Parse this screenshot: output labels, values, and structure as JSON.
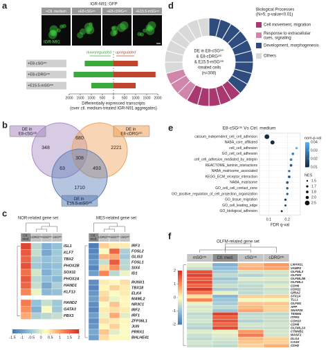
{
  "chart_data": [
    {
      "type": "bar",
      "panel": "a",
      "image_title": "IGR-N91::GFP",
      "image_label": "IGR-N91",
      "image_headers": [
        "+Ctl. medium",
        "+E8-cSGᶜᵐ",
        "+E8-cDRGᶜᵐ",
        "+E15.5-mSGᶜᵐ"
      ],
      "categories": [
        "+E8-cSGᶜᵐ",
        "+E8-cDRGᶜᵐ",
        "+E15.5-mSGᶜᵐ"
      ],
      "series": [
        {
          "name": "downregulated",
          "color": "#3aaa3a",
          "values": [
            -1300,
            -1800,
            -1000
          ]
        },
        {
          "name": "upregulated",
          "color": "#c1442c",
          "values": [
            1100,
            1900,
            1000
          ]
        }
      ],
      "xlim": [
        -2000,
        2000
      ],
      "xticks": [
        {
          "value": -2000,
          "label": "2000"
        },
        {
          "value": -1500,
          "label": "1500"
        },
        {
          "value": -1000,
          "label": "1000"
        },
        {
          "value": -500,
          "label": "500"
        },
        0,
        500,
        1000,
        1500,
        2000
      ],
      "xlabel": [
        "Differentially expressed transcripts",
        "(over ctl. medium-treated IGR-N91 aggregates)"
      ]
    },
    {
      "type": "venn",
      "panel": "b",
      "sets": [
        {
          "name": "DE in E8-cSGᶜᵐ",
          "color": "#a98bc4"
        },
        {
          "name": "DE in E8-cDRGᶜᵐ",
          "color": "#f0a35a"
        },
        {
          "name": "DE in E15.5-mSGᶜᵐ",
          "color": "#5b7fb8"
        }
      ],
      "regions": [
        {
          "sets": [
            0
          ],
          "value": 348
        },
        {
          "sets": [
            1
          ],
          "value": 2221
        },
        {
          "sets": [
            2
          ],
          "value": 1710
        },
        {
          "sets": [
            0,
            1
          ],
          "value": 680
        },
        {
          "sets": [
            0,
            2
          ],
          "value": 63
        },
        {
          "sets": [
            1,
            2
          ],
          "value": 493
        },
        {
          "sets": [
            0,
            1,
            2
          ],
          "value": 308
        }
      ]
    },
    {
      "type": "heatmap",
      "panel": "c",
      "title": "NOR-related gene set",
      "columns": [
        "Ctl. med.",
        "cDRGᶜᵐ",
        "mSGᶜᵐ",
        "cSGᶜᵐ"
      ],
      "rows": [
        "ISL1",
        "KLF7",
        "TBX2",
        "PHOX2B",
        "SOX11",
        "PHOX2A",
        "HAND1",
        "KLF13",
        "HAND2",
        "GATA3",
        "PBX3"
      ],
      "values": [
        [
          1.8,
          -0.3,
          -0.8,
          -0.6
        ],
        [
          1.6,
          -0.2,
          -0.9,
          -0.5
        ],
        [
          1.5,
          -0.4,
          -0.6,
          -0.5
        ],
        [
          1.7,
          -0.5,
          -0.7,
          -0.6
        ],
        [
          1.4,
          -0.1,
          -0.8,
          -0.5
        ],
        [
          1.6,
          -0.3,
          -0.6,
          -0.7
        ],
        [
          1.5,
          -0.2,
          -0.9,
          -0.4
        ],
        [
          1.2,
          0.1,
          -0.7,
          -0.6
        ],
        [
          1.3,
          -0.6,
          -0.2,
          -0.5
        ],
        [
          1.1,
          -0.8,
          0.2,
          -0.5
        ],
        [
          0.9,
          -0.4,
          -0.3,
          -0.2
        ]
      ],
      "colors": [
        "#4575b4",
        "#91bfdb",
        "#ffffbf",
        "#fc8d59",
        "#d73027"
      ],
      "colorbar_ticks": [
        -1.5,
        -1,
        -0.5,
        0,
        0.5,
        1,
        1.5,
        2
      ]
    },
    {
      "type": "heatmap",
      "title": "MES-related gene set",
      "columns": [
        "Ctl. med.",
        "cDRGᶜᵐ",
        "mSGᶜᵐ",
        "cSGᶜᵐ"
      ],
      "rows": [
        "IRF3",
        "FOSL2",
        "GLIS3",
        "FOSL1",
        "SIX4",
        "ID1",
        "RUNX1",
        "TBX18",
        "ELK4",
        "MAML2",
        "NR3C1",
        "IRF2",
        "IRF1",
        "ZFP36L1",
        "JUN",
        "PRRX1",
        "BHLHE41"
      ],
      "values": [
        [
          -1.4,
          0.6,
          0.4,
          0.4
        ],
        [
          -1.3,
          0.2,
          1.5,
          -0.4
        ],
        [
          -1.2,
          0.8,
          0.9,
          -0.5
        ],
        [
          -1.1,
          -0.2,
          1.6,
          -0.3
        ],
        [
          -1.3,
          0.5,
          1.1,
          -0.3
        ],
        [
          -1.0,
          1.2,
          -0.3,
          0.1
        ],
        [
          -1.2,
          0.4,
          0.3,
          0.5
        ],
        [
          -1.3,
          0.3,
          0.6,
          0.4
        ],
        [
          -1.1,
          0.5,
          0.2,
          0.4
        ],
        [
          -1.0,
          0.6,
          0.1,
          0.3
        ],
        [
          -1.2,
          0.2,
          0.7,
          0.3
        ],
        [
          -1.3,
          0.4,
          0.5,
          0.4
        ],
        [
          -1.0,
          0.1,
          0.9,
          0.0
        ],
        [
          -1.2,
          0.5,
          0.4,
          0.3
        ],
        [
          -1.1,
          0.3,
          0.6,
          0.2
        ],
        [
          -0.9,
          0.7,
          0.0,
          0.2
        ],
        [
          -1.0,
          0.5,
          0.3,
          0.2
        ]
      ],
      "colors": [
        "#4575b4",
        "#91bfdb",
        "#ffffbf",
        "#fc8d59",
        "#d73027"
      ],
      "colorbar_ticks": [
        -1.5,
        -1,
        -0.5,
        0,
        0.5,
        1,
        1.5,
        2
      ]
    },
    {
      "type": "pie",
      "panel": "d",
      "donut": true,
      "legend_title": [
        "Biological Processes",
        "(N>5, p-value<0.01)"
      ],
      "center_text": [
        "DE in E8-cSGᶜᵐ",
        "& E8-cDRGᶜᵐ",
        "& E15.5-mSGᶜᵐ",
        "-treated cells",
        "(n=308)"
      ],
      "series": [
        {
          "name": "Cell movement, migration",
          "color": "#a8386f",
          "values": [
            1,
            1,
            1,
            1,
            1
          ]
        },
        {
          "name": "Response to extracellular cues, signaling",
          "color": "#cf86aa",
          "values": [
            1,
            1,
            1
          ]
        },
        {
          "name": "Development, morphogenesis",
          "color": "#2f4c7e",
          "values": [
            1,
            1,
            1,
            1,
            1,
            1,
            1,
            1,
            1
          ]
        },
        {
          "name": "Others",
          "color": "#d9d9d9",
          "values": [
            1,
            1,
            1,
            1,
            1,
            1,
            1
          ]
        }
      ]
    },
    {
      "type": "scatter",
      "panel": "e",
      "title": "E8-cSGᶜᵐ Vs Ctrl. medium",
      "xlabel": "FDR q-val",
      "categories": [
        "calcium_independent_cell_cell_adhesion",
        "NABA_core_affiliated",
        "cell_cell_adhesion",
        "GO_cell_cell_adhesion",
        "cell_cell_adhesion_mediated_by_integrin",
        "REACTOME_laminin_interactions",
        "NABA_matrisome_associated",
        "KEGG_ECM_receptor_interaction",
        "NABA_matrisome",
        "GO_cell_cell_contact_zone",
        "GO_positive_regulation_of_cell_projection_organization",
        "GO_tissue_migration",
        "GO_cell_leading_edge",
        "GO_biological_adhesion"
      ],
      "values": [
        0.09,
        0.12,
        0.25,
        0.23,
        0.22,
        0.22,
        0.21,
        0.21,
        0.2,
        0.2,
        0.2,
        0.19,
        0.19,
        0.17
      ],
      "nom_p_val": [
        0.005,
        0.005,
        0.04,
        0.03,
        0.03,
        0.02,
        0.025,
        0.02,
        0.02,
        0.02,
        0.02,
        0.015,
        0.015,
        0.01
      ],
      "nes": [
        2.5,
        2.3,
        1.7,
        1.8,
        1.8,
        1.8,
        1.7,
        1.8,
        1.8,
        1.7,
        1.7,
        1.7,
        1.6,
        1.6
      ],
      "xlim": [
        0.05,
        0.27
      ],
      "xticks": [
        0.1,
        0.2
      ],
      "grid": true,
      "color_legend_title": "nom-p-val",
      "color_ticks": [
        0.04,
        0.03,
        0.02,
        0.01
      ],
      "color_range": [
        "#132b43",
        "#56b1f7"
      ],
      "size_legend_title": "NES",
      "size_ticks": [
        1.5,
        1.7,
        1.8,
        {
          "value": 2,
          "label": "2.0"
        },
        2.5
      ]
    },
    {
      "type": "heatmap",
      "panel": "f",
      "title": "OLFM-related gene set",
      "columns": [
        "mSGᶜᵐ",
        "Ctl. med.",
        "cSGᶜᵐ",
        "cDRGᶜᵐ"
      ],
      "rows": [
        "LMAN1L",
        "VAMP2",
        "OLFML3",
        "OLFM3",
        "OLFML2B",
        "OLFML1",
        "CDH6",
        "CDH11",
        "GRIA2",
        "STX1A",
        "TLL1",
        "OLFM1",
        "APP",
        "SNAP25",
        "TENM4",
        "ITPR1",
        "CDH10",
        "CDH8",
        "OLFML2A",
        "CTNNB1",
        "WASF1",
        "DLG4",
        "CASK",
        "CDH2"
      ],
      "values": [
        [
          -0.3,
          -1.2,
          0.6,
          0.9
        ],
        [
          -0.5,
          -1.0,
          0.7,
          0.8
        ],
        [
          1.6,
          -0.8,
          -0.4,
          -0.4
        ],
        [
          1.8,
          -0.6,
          -0.7,
          -0.5
        ],
        [
          1.5,
          -0.9,
          -0.3,
          -0.3
        ],
        [
          1.7,
          -0.7,
          -0.5,
          -0.5
        ],
        [
          1.4,
          -0.5,
          -0.6,
          -0.3
        ],
        [
          1.9,
          -0.8,
          -0.6,
          -0.5
        ],
        [
          1.2,
          -0.2,
          -0.6,
          -0.4
        ],
        [
          0.3,
          -1.1,
          0.4,
          0.4
        ],
        [
          1.1,
          -0.9,
          -0.1,
          -0.1
        ],
        [
          -0.2,
          -0.8,
          0.5,
          0.5
        ],
        [
          -0.4,
          -0.6,
          0.6,
          0.4
        ],
        [
          -0.3,
          -0.9,
          0.8,
          0.4
        ],
        [
          -0.6,
          1.8,
          -0.6,
          -0.6
        ],
        [
          -0.5,
          1.5,
          -0.5,
          -0.5
        ],
        [
          -0.4,
          1.6,
          -0.7,
          -0.5
        ],
        [
          -0.6,
          1.4,
          -0.4,
          -0.4
        ],
        [
          -0.7,
          1.7,
          -0.5,
          -0.5
        ],
        [
          -0.3,
          -0.2,
          0.9,
          -0.4
        ],
        [
          -0.5,
          -0.3,
          1.2,
          -0.4
        ],
        [
          -0.6,
          -0.4,
          0.6,
          0.4
        ],
        [
          -0.4,
          -0.5,
          0.5,
          0.4
        ],
        [
          -0.5,
          -0.6,
          0.4,
          0.7
        ]
      ],
      "colors": [
        "#4575b4",
        "#91bfdb",
        "#ffffbf",
        "#fc8d59",
        "#d73027"
      ],
      "colorbar_ticks": [
        2,
        1,
        0,
        -1,
        -2
      ]
    }
  ]
}
